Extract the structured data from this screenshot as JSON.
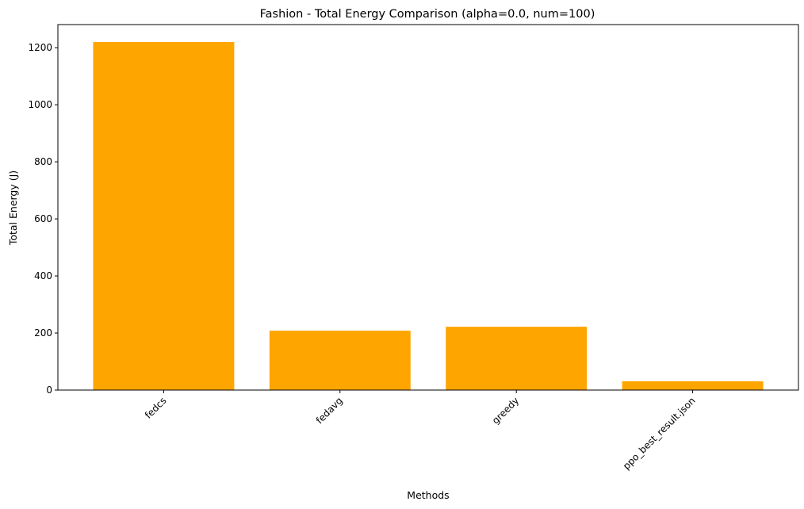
{
  "chart_data": {
    "type": "bar",
    "title": "Fashion - Total Energy Comparison (alpha=0.0, num=100)",
    "xlabel": "Methods",
    "ylabel": "Total Energy (J)",
    "categories": [
      "fedcs",
      "fedavg",
      "greedy",
      "ppo_best_result.json"
    ],
    "values": [
      1220,
      208,
      222,
      31
    ],
    "ylim": [
      0,
      1281
    ],
    "yticks": [
      0,
      200,
      400,
      600,
      800,
      1000,
      1200
    ],
    "xtick_rotation_deg": 45,
    "grid": false,
    "legend": "none",
    "bar_color": "#ffa500"
  }
}
